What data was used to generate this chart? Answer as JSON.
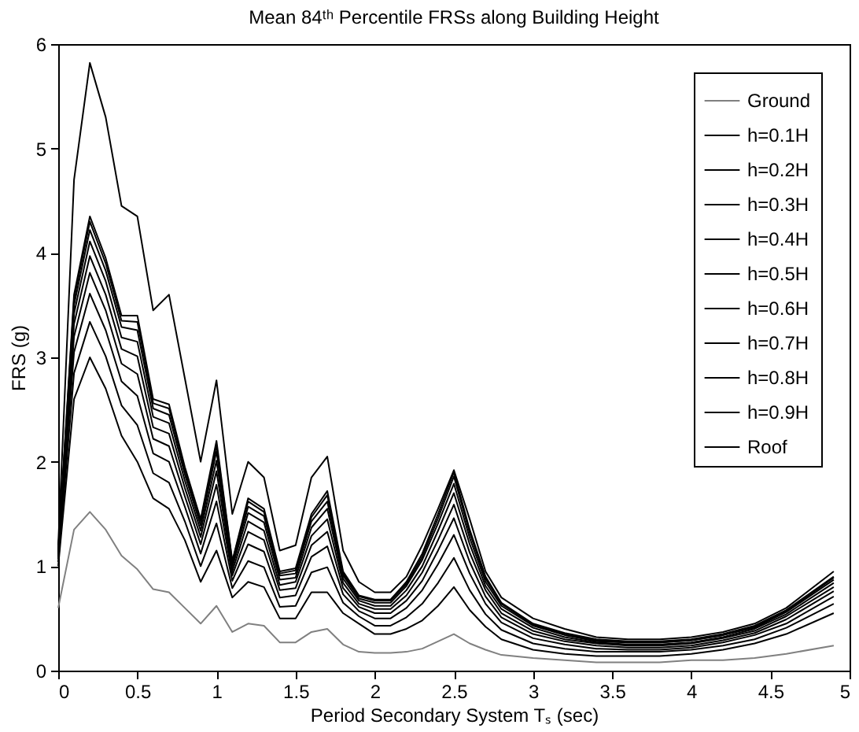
{
  "chart_data": {
    "type": "line",
    "title": "Mean 84ᵗʰ Percentile FRSs along Building Height",
    "xlabel": "Period Secondary System Tₛ (sec)",
    "ylabel": "FRS (g)",
    "x": [
      0,
      0.1,
      0.2,
      0.3,
      0.4,
      0.5,
      0.6,
      0.7,
      0.8,
      0.9,
      1.0,
      1.1,
      1.2,
      1.3,
      1.4,
      1.5,
      1.6,
      1.7,
      1.8,
      1.9,
      2.0,
      2.1,
      2.2,
      2.3,
      2.4,
      2.5,
      2.6,
      2.7,
      2.8,
      3.0,
      3.2,
      3.4,
      3.6,
      3.8,
      4.0,
      4.2,
      4.4,
      4.6,
      4.9
    ],
    "xlim": [
      0,
      5
    ],
    "xticks": [
      0,
      0.5,
      1,
      1.5,
      2,
      2.5,
      3,
      3.5,
      4,
      4.5,
      5
    ],
    "ylim": [
      0,
      6
    ],
    "yticks": [
      0,
      1,
      2,
      3,
      4,
      5,
      6
    ],
    "grid": false,
    "legend": "top right",
    "marker": "none",
    "line_style": "solid",
    "series": [
      {
        "name": "Ground",
        "color": "#808080",
        "values": [
          0.6,
          1.35,
          1.52,
          1.35,
          1.1,
          0.97,
          0.78,
          0.75,
          0.6,
          0.45,
          0.62,
          0.37,
          0.45,
          0.43,
          0.27,
          0.27,
          0.37,
          0.4,
          0.25,
          0.18,
          0.17,
          0.17,
          0.18,
          0.21,
          0.28,
          0.35,
          0.26,
          0.2,
          0.15,
          0.12,
          0.1,
          0.08,
          0.08,
          0.08,
          0.1,
          0.1,
          0.12,
          0.16,
          0.24
        ]
      },
      {
        "name": "h=0.1H",
        "color": "#000000",
        "values": [
          1.0,
          2.6,
          3.0,
          2.7,
          2.25,
          2.0,
          1.65,
          1.55,
          1.25,
          0.85,
          1.15,
          0.7,
          0.85,
          0.8,
          0.5,
          0.5,
          0.75,
          0.75,
          0.55,
          0.45,
          0.35,
          0.35,
          0.4,
          0.48,
          0.62,
          0.8,
          0.58,
          0.42,
          0.3,
          0.2,
          0.16,
          0.14,
          0.14,
          0.14,
          0.16,
          0.2,
          0.26,
          0.35,
          0.55
        ]
      },
      {
        "name": "h=0.2H",
        "color": "#000000",
        "values": [
          1.04,
          2.85,
          3.34,
          3.01,
          2.54,
          2.35,
          1.89,
          1.8,
          1.43,
          1.0,
          1.41,
          0.79,
          1.05,
          0.99,
          0.61,
          0.62,
          0.94,
          0.99,
          0.65,
          0.52,
          0.43,
          0.43,
          0.51,
          0.64,
          0.84,
          1.08,
          0.77,
          0.54,
          0.39,
          0.26,
          0.21,
          0.18,
          0.18,
          0.18,
          0.2,
          0.24,
          0.3,
          0.41,
          0.64
        ]
      },
      {
        "name": "h=0.3H",
        "color": "#000000",
        "values": [
          1.07,
          3.05,
          3.61,
          3.26,
          2.77,
          2.63,
          2.08,
          2.0,
          1.57,
          1.12,
          1.62,
          0.86,
          1.21,
          1.14,
          0.7,
          0.72,
          1.09,
          1.19,
          0.73,
          0.57,
          0.5,
          0.5,
          0.6,
          0.77,
          1.02,
          1.3,
          0.93,
          0.64,
          0.46,
          0.31,
          0.25,
          0.21,
          0.2,
          0.2,
          0.22,
          0.27,
          0.34,
          0.45,
          0.71
        ]
      },
      {
        "name": "h=0.4H",
        "color": "#000000",
        "values": [
          1.09,
          3.2,
          3.81,
          3.45,
          2.94,
          2.84,
          2.22,
          2.15,
          1.67,
          1.21,
          1.78,
          0.91,
          1.33,
          1.25,
          0.77,
          0.79,
          1.2,
          1.33,
          0.79,
          0.61,
          0.55,
          0.55,
          0.67,
          0.86,
          1.15,
          1.46,
          1.04,
          0.71,
          0.51,
          0.35,
          0.28,
          0.24,
          0.22,
          0.22,
          0.24,
          0.29,
          0.36,
          0.49,
          0.76
        ]
      },
      {
        "name": "h=0.5H",
        "color": "#000000",
        "values": [
          1.11,
          3.32,
          3.97,
          3.6,
          3.08,
          3.01,
          2.33,
          2.27,
          1.75,
          1.28,
          1.91,
          0.95,
          1.43,
          1.34,
          0.82,
          0.85,
          1.29,
          1.45,
          0.84,
          0.64,
          0.59,
          0.59,
          0.72,
          0.94,
          1.25,
          1.59,
          1.13,
          0.77,
          0.55,
          0.38,
          0.3,
          0.26,
          0.24,
          0.24,
          0.26,
          0.31,
          0.38,
          0.52,
          0.8
        ]
      },
      {
        "name": "h=0.6H",
        "color": "#000000",
        "values": [
          1.12,
          3.42,
          4.11,
          3.73,
          3.19,
          3.15,
          2.43,
          2.37,
          1.82,
          1.34,
          2.01,
          0.99,
          1.51,
          1.42,
          0.87,
          0.89,
          1.37,
          1.55,
          0.88,
          0.67,
          0.62,
          0.62,
          0.77,
          1.0,
          1.34,
          1.7,
          1.21,
          0.81,
          0.59,
          0.41,
          0.32,
          0.27,
          0.25,
          0.25,
          0.27,
          0.32,
          0.4,
          0.54,
          0.84
        ]
      },
      {
        "name": "h=0.7H",
        "color": "#000000",
        "values": [
          1.14,
          3.5,
          4.22,
          3.83,
          3.29,
          3.26,
          2.51,
          2.45,
          1.88,
          1.39,
          2.1,
          1.02,
          1.57,
          1.48,
          0.91,
          0.93,
          1.43,
          1.62,
          0.91,
          0.69,
          0.65,
          0.65,
          0.81,
          1.06,
          1.41,
          1.79,
          1.27,
          0.85,
          0.62,
          0.43,
          0.34,
          0.28,
          0.27,
          0.27,
          0.29,
          0.34,
          0.41,
          0.56,
          0.87
        ]
      },
      {
        "name": "h=0.8H",
        "color": "#000000",
        "values": [
          1.14,
          3.56,
          4.3,
          3.9,
          3.35,
          3.34,
          2.56,
          2.51,
          1.92,
          1.43,
          2.16,
          1.04,
          1.62,
          1.52,
          0.93,
          0.96,
          1.47,
          1.68,
          0.93,
          0.71,
          0.67,
          0.67,
          0.83,
          1.09,
          1.46,
          1.86,
          1.32,
          0.88,
          0.64,
          0.44,
          0.35,
          0.29,
          0.27,
          0.27,
          0.29,
          0.34,
          0.42,
          0.57,
          0.89
        ]
      },
      {
        "name": "h=0.9H",
        "color": "#000000",
        "values": [
          1.15,
          3.6,
          4.35,
          3.95,
          3.4,
          3.4,
          2.6,
          2.55,
          1.95,
          1.45,
          2.2,
          1.05,
          1.65,
          1.55,
          0.95,
          0.98,
          1.5,
          1.72,
          0.95,
          0.72,
          0.68,
          0.68,
          0.85,
          1.12,
          1.5,
          1.9,
          1.35,
          0.9,
          0.65,
          0.45,
          0.36,
          0.3,
          0.28,
          0.28,
          0.3,
          0.35,
          0.43,
          0.58,
          0.9
        ]
      },
      {
        "name": "Roof",
        "color": "#000000",
        "values": [
          1.2,
          4.7,
          5.82,
          5.3,
          4.45,
          4.35,
          3.45,
          3.6,
          2.8,
          2.0,
          2.78,
          1.5,
          2.0,
          1.85,
          1.15,
          1.2,
          1.85,
          2.05,
          1.15,
          0.85,
          0.75,
          0.75,
          0.9,
          1.2,
          1.55,
          1.92,
          1.45,
          0.95,
          0.7,
          0.5,
          0.4,
          0.32,
          0.3,
          0.3,
          0.32,
          0.37,
          0.45,
          0.6,
          0.95
        ]
      }
    ]
  }
}
